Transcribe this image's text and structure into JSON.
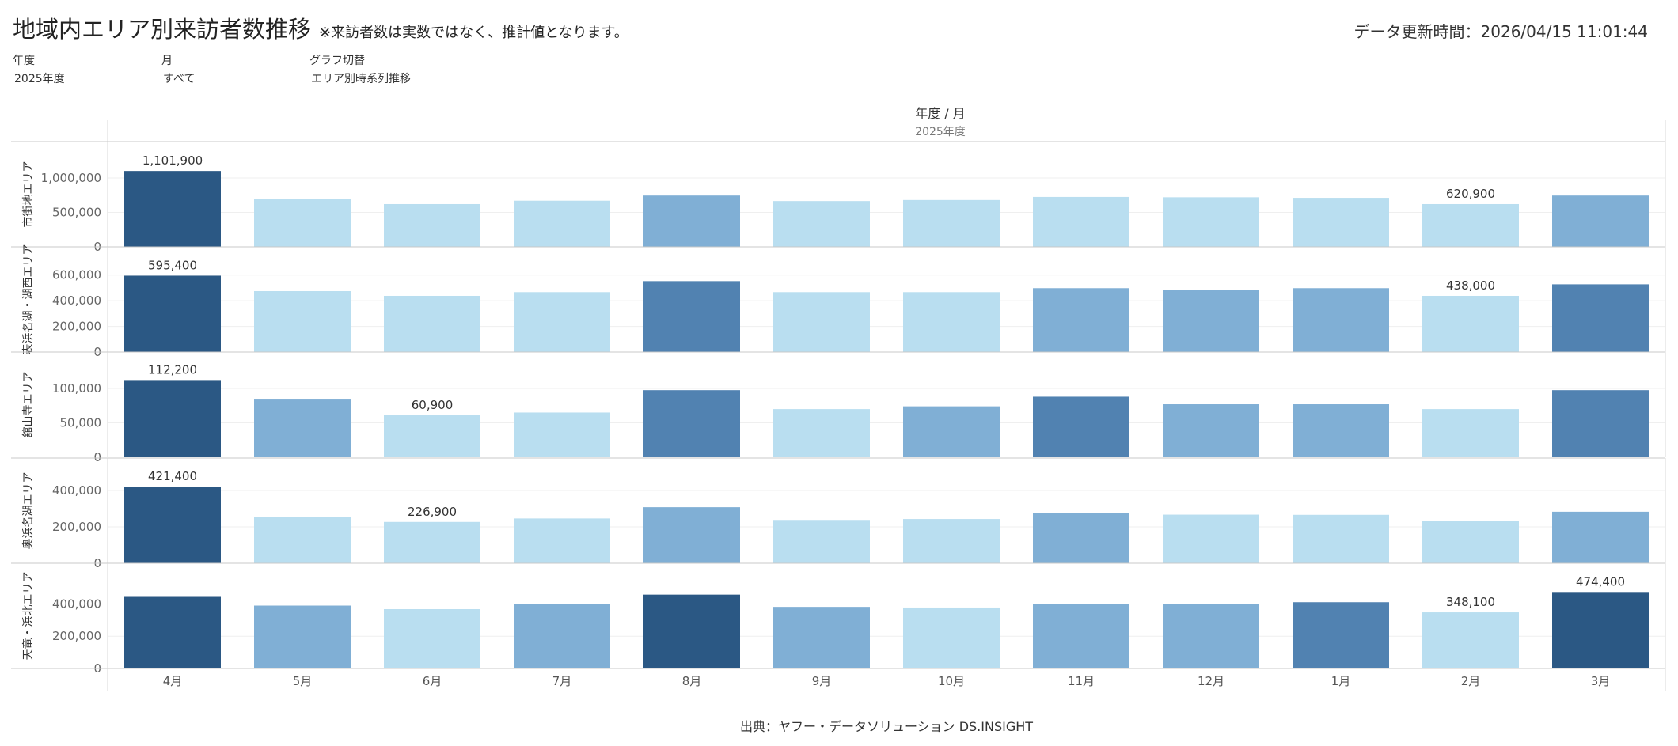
{
  "header": {
    "title": "地域内エリア別来訪者数推移",
    "note": "※来訪者数は実数ではなく、推計値となります。",
    "updated_label": "データ更新時間：",
    "updated_value": "2026/04/15 11:01:44"
  },
  "filters": [
    {
      "label": "年度",
      "value": "2025年度"
    },
    {
      "label": "月",
      "value": "すべて"
    },
    {
      "label": "グラフ切替",
      "value": "エリア別時系列推移"
    }
  ],
  "column_header": {
    "title": "年度 / 月",
    "year": "2025年度"
  },
  "source": "出典：ヤフー・データソリューション DS.INSIGHT",
  "colors": {
    "c1": "#b9def0",
    "c2": "#80afd5",
    "c3": "#5182b1",
    "c4": "#2b5884",
    "grid": "#d9d9d9"
  },
  "chart_data": {
    "type": "bar",
    "categories": [
      "4月",
      "5月",
      "6月",
      "7月",
      "8月",
      "9月",
      "10月",
      "11月",
      "12月",
      "1月",
      "2月",
      "3月"
    ],
    "series": [
      {
        "name": "市街地エリア",
        "values": [
          1101900,
          695000,
          620900,
          670000,
          745000,
          665000,
          680000,
          725000,
          720000,
          712000,
          620900,
          745000
        ],
        "color_levels": [
          4,
          1,
          1,
          1,
          2,
          1,
          1,
          1,
          1,
          1,
          1,
          2
        ],
        "labels": [
          {
            "index": 0,
            "text": "1,101,900"
          },
          {
            "index": 10,
            "text": "620,900"
          }
        ],
        "yticks": [
          0,
          500000,
          1000000
        ],
        "ytick_labels": [
          "0",
          "500,000",
          "1,000,000"
        ],
        "ylim": [
          0,
          1230000
        ]
      },
      {
        "name": "表浜名湖・湖西エリア",
        "values": [
          595400,
          475000,
          438000,
          467000,
          553000,
          467000,
          467000,
          498000,
          483000,
          498000,
          438000,
          528000
        ],
        "color_levels": [
          4,
          1,
          1,
          1,
          3,
          1,
          1,
          2,
          2,
          2,
          1,
          3
        ],
        "labels": [
          {
            "index": 0,
            "text": "595,400"
          },
          {
            "index": 10,
            "text": "438,000"
          }
        ],
        "yticks": [
          0,
          200000,
          400000,
          600000
        ],
        "ytick_labels": [
          "0",
          "200,000",
          "400,000",
          "600,000"
        ],
        "ylim": [
          0,
          660000
        ]
      },
      {
        "name": "舘山寺エリア",
        "values": [
          112200,
          85000,
          60900,
          65000,
          97500,
          70000,
          74000,
          88000,
          77000,
          77000,
          70000,
          97500
        ],
        "color_levels": [
          4,
          2,
          1,
          1,
          3,
          1,
          2,
          3,
          2,
          2,
          1,
          3
        ],
        "labels": [
          {
            "index": 0,
            "text": "112,200"
          },
          {
            "index": 2,
            "text": "60,900"
          }
        ],
        "yticks": [
          0,
          50000,
          100000
        ],
        "ytick_labels": [
          "0",
          "50,000",
          "100,000"
        ],
        "ylim": [
          0,
          123000
        ]
      },
      {
        "name": "奥浜名湖エリア",
        "values": [
          421400,
          255000,
          226900,
          246000,
          308000,
          238000,
          243000,
          274000,
          267000,
          266000,
          234000,
          283000
        ],
        "color_levels": [
          4,
          1,
          1,
          1,
          2,
          1,
          1,
          2,
          1,
          1,
          1,
          2
        ],
        "labels": [
          {
            "index": 0,
            "text": "421,400"
          },
          {
            "index": 2,
            "text": "226,900"
          }
        ],
        "yticks": [
          0,
          200000,
          400000
        ],
        "ytick_labels": [
          "0",
          "200,000",
          "400,000"
        ],
        "ylim": [
          0,
          465000
        ]
      },
      {
        "name": "天竜・浜北エリア",
        "values": [
          444000,
          390000,
          368000,
          402000,
          458000,
          382000,
          378000,
          402000,
          398000,
          411000,
          348100,
          474400
        ],
        "color_levels": [
          4,
          2,
          1,
          2,
          4,
          2,
          1,
          2,
          2,
          3,
          1,
          4
        ],
        "labels": [
          {
            "index": 10,
            "text": "348,100"
          },
          {
            "index": 11,
            "text": "474,400"
          }
        ],
        "yticks": [
          0,
          200000,
          400000
        ],
        "ytick_labels": [
          "0",
          "200,000",
          "400,000"
        ],
        "ylim": [
          0,
          525000
        ]
      }
    ]
  }
}
